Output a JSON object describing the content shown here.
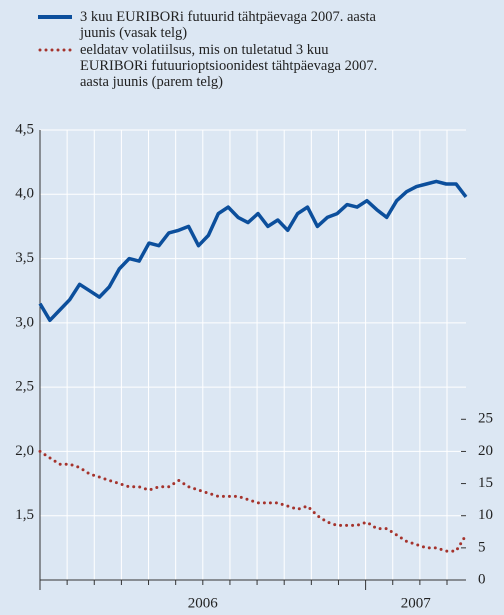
{
  "chart_data": {
    "type": "line",
    "categories": [
      null,
      null,
      null,
      null,
      null,
      null,
      null,
      null,
      null,
      null,
      null,
      null,
      null,
      null,
      null,
      null,
      null,
      null,
      null,
      null,
      null,
      null,
      null,
      null,
      null,
      null,
      null,
      null,
      null,
      null,
      null,
      null,
      null,
      null,
      null,
      null,
      null,
      null,
      null,
      null,
      null,
      null,
      null,
      null
    ],
    "year_labels": [
      "2006",
      "2007"
    ],
    "series": [
      {
        "name": "3 kuu EURIBORi futuurid tähtpäevaga 2007. aasta juunis (vasak telg)",
        "color": "#0c4f9c",
        "style": "solid",
        "values": [
          3.15,
          3.02,
          3.1,
          3.18,
          3.3,
          3.25,
          3.2,
          3.28,
          3.42,
          3.5,
          3.48,
          3.62,
          3.6,
          3.7,
          3.72,
          3.75,
          3.6,
          3.68,
          3.85,
          3.9,
          3.82,
          3.78,
          3.85,
          3.75,
          3.8,
          3.72,
          3.85,
          3.9,
          3.75,
          3.82,
          3.85,
          3.92,
          3.9,
          3.95,
          3.88,
          3.82,
          3.95,
          4.02,
          4.06,
          4.08,
          4.1,
          4.08,
          4.08,
          3.98
        ]
      },
      {
        "name": "eeldatav volatiilsus, mis on tuletatud 3 kuu EURIBORi futuurioptsioonidest tähtpäevaga 2007. aasta juunis (parem telg)",
        "color": "#a5332c",
        "style": "dotted",
        "axis": "y2",
        "values": [
          20,
          19,
          18,
          18,
          17.5,
          16.5,
          16,
          15.5,
          15,
          14.5,
          14.5,
          14,
          14.5,
          14.5,
          15.5,
          14.5,
          14,
          13.5,
          13,
          13,
          13,
          12.5,
          12,
          12,
          12,
          11.5,
          11,
          11.5,
          10,
          9,
          8.5,
          8.5,
          8.5,
          9,
          8,
          8,
          7,
          6,
          5.5,
          5,
          5,
          4.5,
          4.5,
          7
        ]
      }
    ],
    "ylim": [
      1.0,
      4.5
    ],
    "yticks": [
      {
        "value": 1.5,
        "label": "1,5"
      },
      {
        "value": 2.0,
        "label": "2,0"
      },
      {
        "value": 2.5,
        "label": "2,5"
      },
      {
        "value": 3.0,
        "label": "3,0"
      },
      {
        "value": 3.5,
        "label": "3,5"
      },
      {
        "value": 4.0,
        "label": "4,0"
      },
      {
        "value": 4.5,
        "label": "4,5"
      }
    ],
    "y2lim": [
      0,
      70
    ],
    "y2ticks": [
      0,
      5,
      10,
      15,
      20,
      25
    ],
    "grid": true
  }
}
